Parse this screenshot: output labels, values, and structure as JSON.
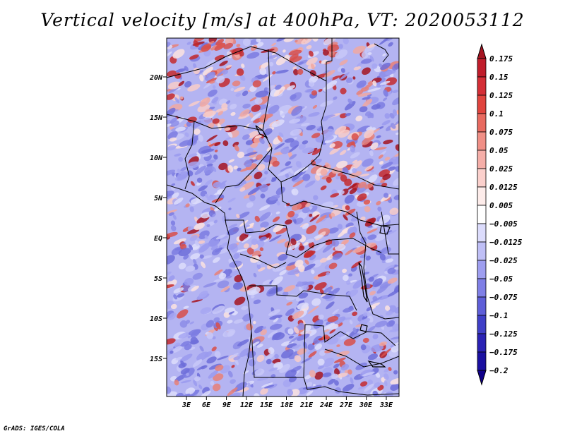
{
  "title": "Vertical velocity [m/s] at 400hPa, VT: 2020053112",
  "credit": "GrADS: IGES/COLA",
  "map": {
    "lat_labels": [
      "20N",
      "15N",
      "10N",
      "5N",
      "EQ",
      "5S",
      "10S",
      "15S"
    ],
    "lon_labels": [
      "3E",
      "6E",
      "9E",
      "12E",
      "15E",
      "18E",
      "21E",
      "24E",
      "27E",
      "30E",
      "33E"
    ],
    "lon_range": [
      0,
      35
    ],
    "lat_range": [
      -20,
      25
    ]
  },
  "colorbar": {
    "levels": [
      "0.175",
      "0.15",
      "0.125",
      "0.1",
      "0.075",
      "0.05",
      "0.025",
      "0.0125",
      "0.005",
      "−0.005",
      "−0.0125",
      "−0.025",
      "−0.05",
      "−0.075",
      "−0.1",
      "−0.125",
      "−0.175",
      "−0.2"
    ],
    "colors": [
      "#a51421",
      "#c01d2b",
      "#d42e36",
      "#e0443e",
      "#e86a60",
      "#f08f86",
      "#f5aea8",
      "#fbd0cc",
      "#fdecea",
      "#ffffff",
      "#dcdcfc",
      "#bfbff6",
      "#9e9ef0",
      "#7f7fe6",
      "#5e5ed8",
      "#3f3fc7",
      "#2a22b4",
      "#1a10a0",
      "#10008a"
    ]
  }
}
